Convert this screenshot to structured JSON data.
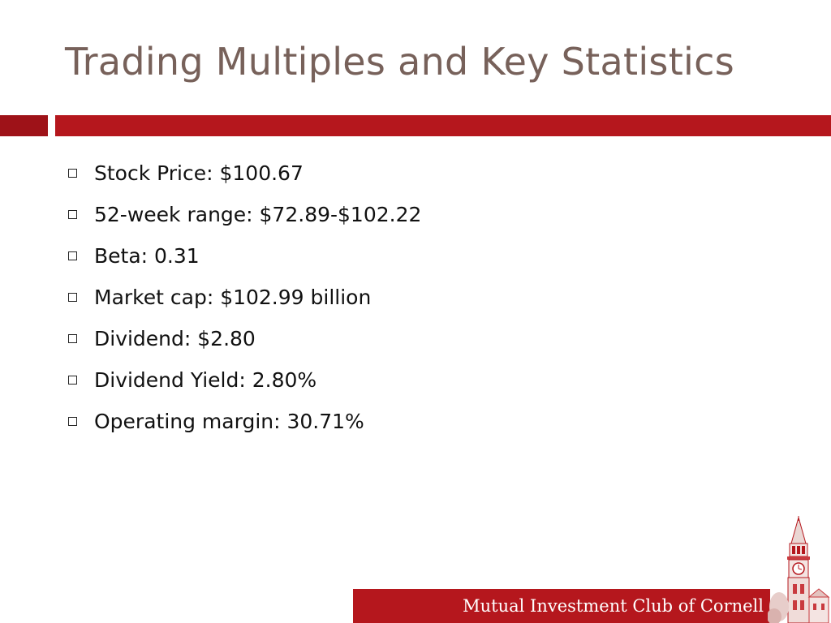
{
  "slide": {
    "title": "Trading Multiples and Key Statistics",
    "bullets": [
      "Stock Price: $100.67",
      "52-week range: $72.89-$102.22",
      "Beta: 0.31",
      "Market cap: $102.99 billion",
      "Dividend: $2.80",
      "Dividend Yield: 2.80%",
      "Operating margin: 30.71%"
    ],
    "footer": "Mutual Investment Club of Cornell"
  },
  "icons": {
    "bullet": "square-outline-bullet-icon",
    "logo": "clock-tower-illustration"
  },
  "colors": {
    "title": "#77615a",
    "accent_bar": "#b5171d",
    "accent_bar_dark": "#9e1218",
    "footer_bg": "#b5171d",
    "footer_text": "#ffffff"
  }
}
